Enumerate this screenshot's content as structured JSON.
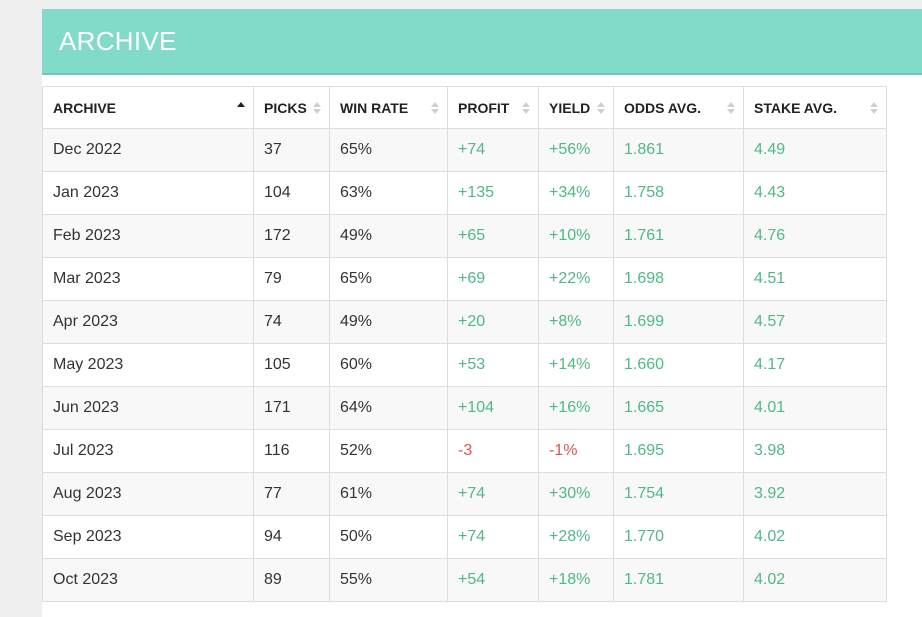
{
  "section": {
    "title": "ARCHIVE"
  },
  "table": {
    "headers": [
      {
        "label": "ARCHIVE",
        "sort": "asc"
      },
      {
        "label": "PICKS",
        "sort": "none"
      },
      {
        "label": "WIN RATE",
        "sort": "none"
      },
      {
        "label": "PROFIT",
        "sort": "none"
      },
      {
        "label": "YIELD",
        "sort": "none"
      },
      {
        "label": "ODDS AVG.",
        "sort": "none"
      },
      {
        "label": "STAKE AVG.",
        "sort": "none"
      }
    ],
    "rows": [
      {
        "month": "Dec 2022",
        "picks": "37",
        "win_rate": "65%",
        "profit": "+74",
        "yield": "+56%",
        "odds_avg": "1.861",
        "stake_avg": "4.49"
      },
      {
        "month": "Jan 2023",
        "picks": "104",
        "win_rate": "63%",
        "profit": "+135",
        "yield": "+34%",
        "odds_avg": "1.758",
        "stake_avg": "4.43"
      },
      {
        "month": "Feb 2023",
        "picks": "172",
        "win_rate": "49%",
        "profit": "+65",
        "yield": "+10%",
        "odds_avg": "1.761",
        "stake_avg": "4.76"
      },
      {
        "month": "Mar 2023",
        "picks": "79",
        "win_rate": "65%",
        "profit": "+69",
        "yield": "+22%",
        "odds_avg": "1.698",
        "stake_avg": "4.51"
      },
      {
        "month": "Apr 2023",
        "picks": "74",
        "win_rate": "49%",
        "profit": "+20",
        "yield": "+8%",
        "odds_avg": "1.699",
        "stake_avg": "4.57"
      },
      {
        "month": "May 2023",
        "picks": "105",
        "win_rate": "60%",
        "profit": "+53",
        "yield": "+14%",
        "odds_avg": "1.660",
        "stake_avg": "4.17"
      },
      {
        "month": "Jun 2023",
        "picks": "171",
        "win_rate": "64%",
        "profit": "+104",
        "yield": "+16%",
        "odds_avg": "1.665",
        "stake_avg": "4.01"
      },
      {
        "month": "Jul 2023",
        "picks": "116",
        "win_rate": "52%",
        "profit": "-3",
        "yield": "-1%",
        "odds_avg": "1.695",
        "stake_avg": "3.98"
      },
      {
        "month": "Aug 2023",
        "picks": "77",
        "win_rate": "61%",
        "profit": "+74",
        "yield": "+30%",
        "odds_avg": "1.754",
        "stake_avg": "3.92"
      },
      {
        "month": "Sep 2023",
        "picks": "94",
        "win_rate": "50%",
        "profit": "+74",
        "yield": "+28%",
        "odds_avg": "1.770",
        "stake_avg": "4.02"
      },
      {
        "month": "Oct 2023",
        "picks": "89",
        "win_rate": "55%",
        "profit": "+54",
        "yield": "+18%",
        "odds_avg": "1.781",
        "stake_avg": "4.02"
      }
    ]
  },
  "colors": {
    "header_bg": "#82dbc9",
    "positive": "#4fb887",
    "negative": "#d9534f"
  }
}
